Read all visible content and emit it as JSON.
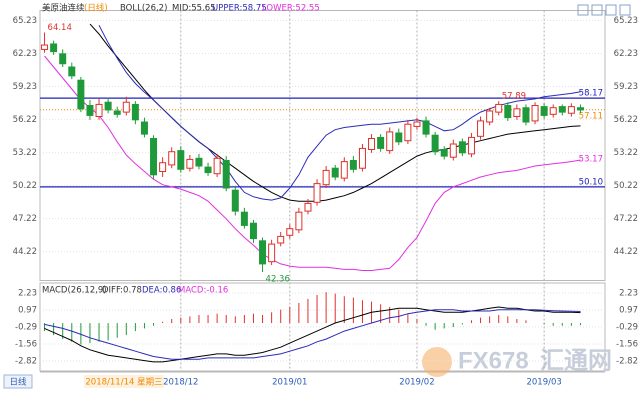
{
  "chart_data": {
    "type": "candlestick",
    "title": "美原油连续",
    "period": "(日线)",
    "boll_header": [
      "BOLL(26,2)",
      "MID:55.65",
      "UPPER:58.75",
      "LOWER:52.55"
    ],
    "macd_header": [
      "MACD(26,12,9)",
      "DIFF:0.78",
      "DEA:0.86",
      "MACD:-0.16"
    ],
    "period_button": "日线",
    "cursor_label": "2018/11/14 星期三",
    "watermark": [
      "FX678",
      "汇通网"
    ],
    "categories": [
      null,
      null,
      null,
      null,
      null,
      null,
      null,
      null,
      null,
      null,
      null,
      null,
      null,
      null,
      null,
      "2018/12",
      null,
      null,
      null,
      null,
      null,
      null,
      null,
      null,
      null,
      null,
      null,
      "2019/01",
      null,
      null,
      null,
      null,
      null,
      null,
      null,
      null,
      null,
      null,
      null,
      null,
      null,
      "2019/02",
      null,
      null,
      null,
      null,
      null,
      null,
      null,
      null,
      null,
      null,
      null,
      null,
      null,
      "2019/03",
      null,
      null,
      null,
      null
    ],
    "open": [
      62.6,
      63.1,
      62.2,
      61.0,
      59.8,
      57.5,
      56.5,
      57.8,
      57.0,
      56.9,
      57.6,
      56.0,
      54.5,
      51.5,
      52.1,
      53.4,
      51.8,
      52.7,
      51.9,
      51.3,
      52.5,
      49.8,
      47.8,
      46.8,
      45.2,
      43.3,
      45.0,
      45.7,
      46.2,
      47.9,
      48.7,
      50.3,
      51.8,
      50.9,
      52.5,
      51.8,
      53.5,
      54.6,
      53.4,
      55.0,
      54.3,
      55.6,
      56.1,
      54.8,
      53.5,
      52.8,
      54.2,
      53.1,
      54.7,
      56.0,
      56.9,
      57.5,
      56.5,
      57.3,
      56.1,
      57.4,
      56.7,
      57.4,
      56.8,
      57.3
    ],
    "high": [
      64.14,
      63.4,
      62.6,
      61.4,
      60.1,
      58.0,
      58.1,
      58.2,
      57.4,
      58.3,
      57.9,
      56.4,
      54.8,
      52.8,
      53.7,
      53.8,
      53.0,
      53.1,
      52.3,
      53.1,
      52.9,
      50.2,
      48.2,
      47.1,
      45.5,
      45.3,
      46.0,
      46.7,
      48.2,
      49.0,
      50.8,
      52.0,
      52.1,
      52.8,
      52.9,
      54.0,
      54.9,
      54.9,
      55.5,
      55.4,
      56.2,
      56.4,
      56.5,
      55.1,
      53.8,
      54.4,
      54.5,
      55.0,
      56.5,
      57.3,
      57.89,
      57.8,
      57.6,
      57.6,
      57.8,
      57.7,
      57.6,
      57.6,
      57.7,
      57.6
    ],
    "low": [
      62.3,
      62.1,
      61.0,
      59.9,
      56.9,
      56.2,
      56.2,
      56.8,
      56.4,
      56.6,
      55.8,
      54.6,
      50.8,
      51.0,
      51.8,
      51.4,
      51.5,
      51.7,
      51.1,
      51.0,
      49.7,
      47.5,
      46.3,
      45.0,
      42.36,
      43.0,
      44.7,
      45.4,
      45.9,
      47.6,
      48.4,
      50.0,
      50.7,
      50.6,
      51.4,
      51.5,
      53.2,
      53.3,
      53.1,
      53.9,
      54.0,
      55.3,
      54.6,
      53.0,
      52.6,
      52.5,
      52.9,
      52.8,
      54.4,
      55.7,
      56.6,
      56.1,
      56.2,
      55.7,
      55.8,
      56.3,
      56.4,
      56.6,
      56.5,
      56.8
    ],
    "close": [
      63.0,
      62.4,
      61.3,
      60.2,
      57.2,
      56.6,
      57.6,
      57.1,
      56.7,
      57.8,
      56.2,
      54.9,
      51.2,
      52.3,
      53.3,
      51.7,
      52.6,
      52.0,
      51.4,
      52.7,
      50.0,
      47.9,
      46.6,
      45.4,
      43.1,
      44.9,
      45.6,
      46.3,
      47.8,
      48.6,
      50.4,
      51.6,
      51.0,
      52.4,
      51.7,
      53.6,
      54.5,
      53.6,
      55.1,
      54.2,
      55.8,
      56.0,
      54.9,
      53.3,
      52.9,
      54.0,
      53.2,
      54.6,
      56.1,
      57.0,
      57.6,
      56.4,
      57.2,
      56.0,
      57.5,
      56.6,
      57.3,
      56.9,
      57.4,
      57.1
    ],
    "up_color": "#e0302a",
    "down_color": "#1f9a3a",
    "boll": [
      {
        "color": "#000000",
        "values": [
          null,
          null,
          null,
          null,
          null,
          64.9,
          64.0,
          62.9,
          61.9,
          60.9,
          59.9,
          58.9,
          58.0,
          57.2,
          56.4,
          55.6,
          54.9,
          54.2,
          53.6,
          53.0,
          52.4,
          51.8,
          51.2,
          50.6,
          50.1,
          49.6,
          49.2,
          48.9,
          48.8,
          48.8,
          48.8,
          48.9,
          49.1,
          49.3,
          49.6,
          50.0,
          50.4,
          50.9,
          51.4,
          51.9,
          52.4,
          52.9,
          53.2,
          53.4,
          53.5,
          53.7,
          53.9,
          54.1,
          54.3,
          54.5,
          54.7,
          54.9,
          55.0,
          55.1,
          55.2,
          55.3,
          55.4,
          55.5,
          55.6,
          55.65
        ]
      },
      {
        "color": "#2b2bb8",
        "values": [
          null,
          null,
          null,
          null,
          null,
          null,
          64.8,
          63.2,
          61.8,
          60.5,
          59.5,
          58.7,
          58.0,
          57.2,
          56.4,
          55.6,
          54.9,
          54.2,
          53.6,
          52.7,
          51.8,
          50.6,
          49.6,
          49.2,
          49.0,
          48.9,
          49.1,
          50.0,
          51.2,
          52.8,
          53.8,
          54.8,
          55.3,
          55.5,
          55.6,
          55.7,
          55.8,
          55.8,
          55.9,
          56.0,
          56.1,
          56.2,
          56.0,
          55.6,
          55.2,
          55.3,
          55.8,
          56.4,
          56.9,
          57.2,
          57.5,
          57.7,
          57.9,
          58.0,
          58.1,
          58.3,
          58.4,
          58.5,
          58.6,
          58.75
        ]
      },
      {
        "color": "#e030e0",
        "values": [
          62.0,
          61.0,
          60.0,
          59.0,
          58.0,
          57.3,
          56.6,
          55.5,
          54.2,
          53.0,
          52.2,
          51.5,
          50.8,
          50.3,
          50.1,
          49.9,
          49.6,
          49.3,
          48.8,
          48.0,
          47.2,
          46.3,
          45.5,
          44.8,
          44.0,
          43.5,
          43.1,
          42.9,
          42.8,
          42.8,
          42.8,
          42.8,
          42.7,
          42.6,
          42.6,
          42.5,
          42.5,
          42.6,
          42.7,
          43.5,
          44.6,
          45.5,
          47.0,
          48.6,
          49.6,
          50.1,
          50.4,
          50.7,
          51.0,
          51.2,
          51.4,
          51.5,
          51.6,
          51.8,
          52.0,
          52.1,
          52.2,
          52.3,
          52.4,
          52.55
        ]
      }
    ],
    "ylim": [
      41.59,
      66.14
    ],
    "yticks": [
      65.23,
      62.23,
      59.23,
      56.22,
      53.22,
      50.22,
      47.22,
      44.22
    ],
    "hlines": [
      {
        "value": 58.17,
        "label": "58.17"
      },
      {
        "value": 50.1,
        "label": "50.10"
      }
    ],
    "hline_color": "#2222bb",
    "extremes": [
      {
        "value": 64.14,
        "color": "#e0302a"
      },
      {
        "value": 42.36,
        "color": "#1f9a3a"
      },
      {
        "value": 57.89,
        "color": "#e0302a"
      }
    ],
    "price_labels": [
      {
        "value": 57.11,
        "color": "#f08a00",
        "style": "dotted"
      },
      {
        "value": 53.17,
        "color": "#e030e0"
      }
    ],
    "macd": {
      "hist": [
        -0.6,
        -0.9,
        -1.2,
        -1.4,
        -1.6,
        -1.5,
        -1.4,
        -1.3,
        -1.1,
        -0.9,
        -0.6,
        -0.4,
        -0.2,
        0.1,
        0.3,
        0.4,
        0.5,
        0.6,
        0.6,
        0.7,
        0.6,
        0.5,
        0.6,
        0.7,
        0.6,
        0.8,
        1.0,
        1.2,
        1.5,
        1.8,
        2.1,
        2.3,
        2.2,
        2.0,
        1.9,
        1.7,
        1.6,
        1.4,
        1.2,
        1.0,
        0.7,
        0.3,
        -0.2,
        -0.5,
        -0.4,
        -0.3,
        -0.1,
        0.2,
        0.4,
        0.5,
        0.6,
        0.5,
        0.3,
        0.2,
        0.0,
        -0.1,
        -0.2,
        -0.2,
        -0.2,
        -0.16
      ],
      "diff": {
        "color": "#000000",
        "values": [
          -0.4,
          -0.7,
          -1.0,
          -1.3,
          -1.7,
          -2.0,
          -2.2,
          -2.4,
          -2.5,
          -2.6,
          -2.7,
          -2.8,
          -2.9,
          -2.9,
          -2.8,
          -2.7,
          -2.6,
          -2.5,
          -2.4,
          -2.3,
          -2.3,
          -2.4,
          -2.4,
          -2.3,
          -2.2,
          -2.0,
          -1.8,
          -1.5,
          -1.2,
          -0.9,
          -0.6,
          -0.3,
          0.0,
          0.2,
          0.4,
          0.6,
          0.8,
          0.9,
          1.0,
          1.1,
          1.1,
          1.1,
          1.0,
          0.9,
          0.8,
          0.8,
          0.8,
          0.9,
          1.0,
          1.1,
          1.2,
          1.1,
          1.1,
          1.0,
          0.9,
          0.9,
          0.8,
          0.8,
          0.8,
          0.78
        ]
      },
      "dea": {
        "color": "#2b2bb8",
        "values": [
          -0.1,
          -0.25,
          -0.4,
          -0.6,
          -0.85,
          -1.1,
          -1.3,
          -1.5,
          -1.7,
          -1.9,
          -2.1,
          -2.3,
          -2.5,
          -2.6,
          -2.7,
          -2.7,
          -2.7,
          -2.7,
          -2.6,
          -2.6,
          -2.6,
          -2.6,
          -2.6,
          -2.6,
          -2.5,
          -2.4,
          -2.3,
          -2.1,
          -1.9,
          -1.7,
          -1.4,
          -1.2,
          -0.9,
          -0.6,
          -0.4,
          -0.2,
          0.0,
          0.2,
          0.4,
          0.5,
          0.7,
          0.8,
          0.9,
          1.0,
          1.0,
          1.0,
          0.9,
          0.9,
          0.9,
          0.9,
          1.0,
          1.0,
          1.0,
          1.0,
          1.0,
          0.95,
          0.92,
          0.9,
          0.88,
          0.86
        ]
      },
      "ylim": [
        -3.58,
        2.99
      ],
      "yticks": [
        2.23,
        0.97,
        -0.29,
        -1.56,
        -2.82
      ]
    },
    "grid": true
  }
}
